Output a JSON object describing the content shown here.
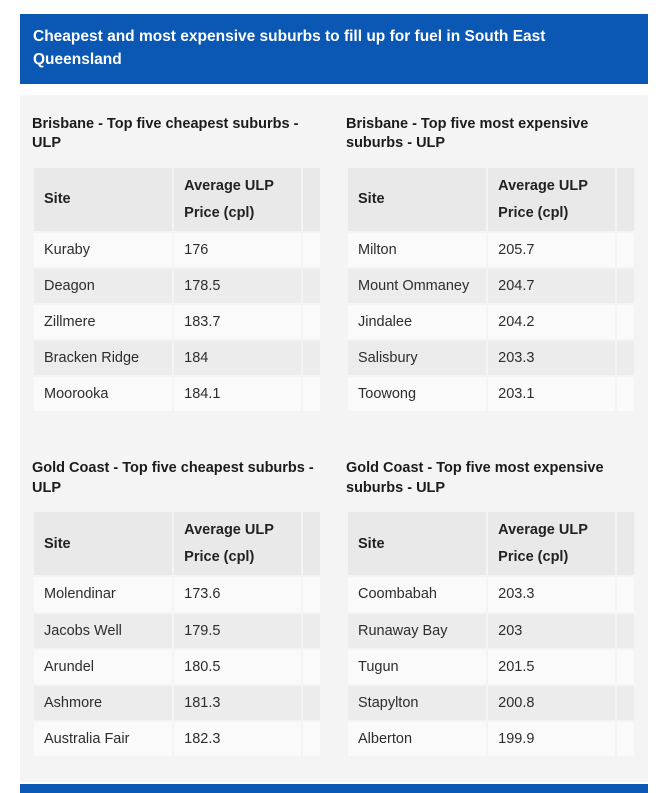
{
  "banner": {
    "title": "Cheapest and most expensive suburbs to fill up for fuel in South East Queensland"
  },
  "columns": {
    "site": "Site",
    "price_line1": "Average ULP",
    "price_line2": "Price (cpl)"
  },
  "tables": [
    {
      "title": "Brisbane - Top five cheapest suburbs - ULP",
      "rows": [
        [
          "Kuraby",
          "176"
        ],
        [
          "Deagon",
          "178.5"
        ],
        [
          "Zillmere",
          "183.7"
        ],
        [
          "Bracken Ridge",
          "184"
        ],
        [
          "Moorooka",
          "184.1"
        ]
      ]
    },
    {
      "title": "Brisbane - Top five most expensive suburbs - ULP",
      "rows": [
        [
          "Milton",
          "205.7"
        ],
        [
          "Mount Ommaney",
          "204.7"
        ],
        [
          "Jindalee",
          "204.2"
        ],
        [
          "Salisbury",
          "203.3"
        ],
        [
          "Toowong",
          "203.1"
        ]
      ]
    },
    {
      "title": "Gold Coast - Top five cheapest suburbs - ULP",
      "rows": [
        [
          "Molendinar",
          "173.6"
        ],
        [
          "Jacobs Well",
          "179.5"
        ],
        [
          "Arundel",
          "180.5"
        ],
        [
          "Ashmore",
          "181.3"
        ],
        [
          "Australia Fair",
          "182.3"
        ]
      ]
    },
    {
      "title": "Gold Coast - Top five most expensive suburbs - ULP",
      "rows": [
        [
          "Coombabah",
          "203.3"
        ],
        [
          "Runaway Bay",
          "203"
        ],
        [
          "Tugun",
          "201.5"
        ],
        [
          "Stapylton",
          "200.8"
        ],
        [
          "Alberton",
          "199.9"
        ]
      ]
    }
  ],
  "colors": {
    "banner_bg": "#0b57b4",
    "banner_text": "#ffffff",
    "card_bg": "#f4f4f4",
    "header_row_bg": "#e9e9e9",
    "row_bg": "#fafafa",
    "row_alt_bg": "#ececec",
    "text": "#2d2d2d"
  }
}
